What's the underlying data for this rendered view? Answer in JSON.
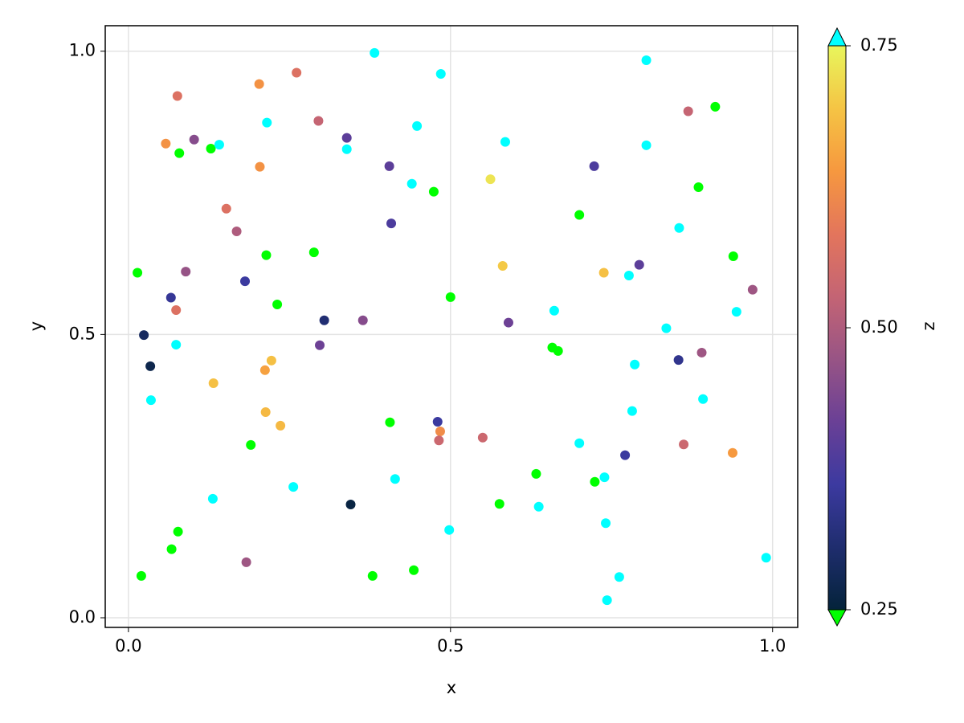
{
  "chart_data": {
    "type": "scatter",
    "xlabel": "x",
    "ylabel": "y",
    "colorbar_label": "z",
    "xlim": [
      -0.036,
      1.039
    ],
    "ylim": [
      -0.017,
      1.045
    ],
    "zlim": [
      0.25,
      0.75
    ],
    "xticks": [
      {
        "value": 0,
        "label": "0.0"
      },
      0.5,
      {
        "value": 1,
        "label": "1.0"
      }
    ],
    "yticks": [
      {
        "value": 0,
        "label": "0.0"
      },
      0.5,
      {
        "value": 1,
        "label": "1.0"
      }
    ],
    "zticks": [
      0.25,
      {
        "value": 0.5,
        "label": "0.50"
      },
      0.75
    ],
    "grid": true,
    "colormap": [
      "#04233a",
      "#1f2d6e",
      "#3c3aa0",
      "#6a4096",
      "#985485",
      "#c46474",
      "#e3755c",
      "#f6983f",
      "#f5c444",
      "#e8f65c"
    ],
    "lowclip": "#00ff00",
    "highclip": "#00ffff",
    "x": [
      0.382,
      0.261,
      0.203,
      0.076,
      0.485,
      0.804,
      0.911,
      0.869,
      0.215,
      0.295,
      0.448,
      0.058,
      0.102,
      0.128,
      0.141,
      0.079,
      0.339,
      0.339,
      0.585,
      0.804,
      0.723,
      0.405,
      0.204,
      0.44,
      0.474,
      0.562,
      0.885,
      0.152,
      0.408,
      0.7,
      0.168,
      0.855,
      0.214,
      0.288,
      0.581,
      0.939,
      0.014,
      0.089,
      0.793,
      0.738,
      0.777,
      0.181,
      0.969,
      0.066,
      0.5,
      0.074,
      0.231,
      0.661,
      0.944,
      0.304,
      0.364,
      0.59,
      0.024,
      0.835,
      0.074,
      0.297,
      0.658,
      0.667,
      0.89,
      0.854,
      0.034,
      0.222,
      0.212,
      0.786,
      0.132,
      0.035,
      0.892,
      0.213,
      0.782,
      0.236,
      0.406,
      0.48,
      0.484,
      0.482,
      0.55,
      0.7,
      0.19,
      0.862,
      0.938,
      0.771,
      0.633,
      0.739,
      0.724,
      0.414,
      0.256,
      0.131,
      0.345,
      0.576,
      0.637,
      0.498,
      0.077,
      0.741,
      0.067,
      0.183,
      0.99,
      0.02,
      0.379,
      0.443,
      0.762,
      0.743
    ],
    "y": [
      0.997,
      0.962,
      0.942,
      0.921,
      0.96,
      0.984,
      0.902,
      0.894,
      0.874,
      0.877,
      0.868,
      0.837,
      0.844,
      0.828,
      0.835,
      0.82,
      0.847,
      0.827,
      0.84,
      0.834,
      0.797,
      0.797,
      0.796,
      0.766,
      0.752,
      0.774,
      0.76,
      0.722,
      0.696,
      0.711,
      0.682,
      0.688,
      0.64,
      0.645,
      0.621,
      0.638,
      0.609,
      0.611,
      0.623,
      0.609,
      0.604,
      0.594,
      0.579,
      0.565,
      0.566,
      0.543,
      0.553,
      0.542,
      0.54,
      0.525,
      0.525,
      0.521,
      0.499,
      0.511,
      0.482,
      0.481,
      0.477,
      0.471,
      0.468,
      0.455,
      0.444,
      0.454,
      0.437,
      0.447,
      0.414,
      0.384,
      0.386,
      0.363,
      0.365,
      0.339,
      0.345,
      0.346,
      0.329,
      0.313,
      0.318,
      0.308,
      0.305,
      0.306,
      0.291,
      0.287,
      0.254,
      0.248,
      0.24,
      0.245,
      0.231,
      0.21,
      0.2,
      0.201,
      0.196,
      0.155,
      0.152,
      0.167,
      0.121,
      0.098,
      0.106,
      0.074,
      0.074,
      0.084,
      0.072,
      0.031
    ],
    "z": [
      0.8,
      0.57,
      0.63,
      0.57,
      0.8,
      0.8,
      0.2,
      0.53,
      0.8,
      0.53,
      0.8,
      0.63,
      0.45,
      0.2,
      0.8,
      0.2,
      0.4,
      0.8,
      0.8,
      0.8,
      0.38,
      0.4,
      0.63,
      0.8,
      0.2,
      0.73,
      0.2,
      0.57,
      0.38,
      0.2,
      0.5,
      0.8,
      0.2,
      0.2,
      0.7,
      0.2,
      0.2,
      0.47,
      0.4,
      0.69,
      0.8,
      0.36,
      0.48,
      0.35,
      0.2,
      0.57,
      0.2,
      0.8,
      0.8,
      0.31,
      0.45,
      0.42,
      0.29,
      0.8,
      0.8,
      0.42,
      0.2,
      0.2,
      0.48,
      0.34,
      0.27,
      0.69,
      0.65,
      0.8,
      0.69,
      0.8,
      0.8,
      0.68,
      0.8,
      0.68,
      0.2,
      0.36,
      0.62,
      0.54,
      0.54,
      0.8,
      0.2,
      0.54,
      0.64,
      0.36,
      0.2,
      0.8,
      0.2,
      0.8,
      0.8,
      0.8,
      0.26,
      0.2,
      0.8,
      0.8,
      0.2,
      0.8,
      0.2,
      0.48,
      0.8,
      0.2,
      0.2,
      0.2,
      0.8,
      0.8
    ]
  }
}
